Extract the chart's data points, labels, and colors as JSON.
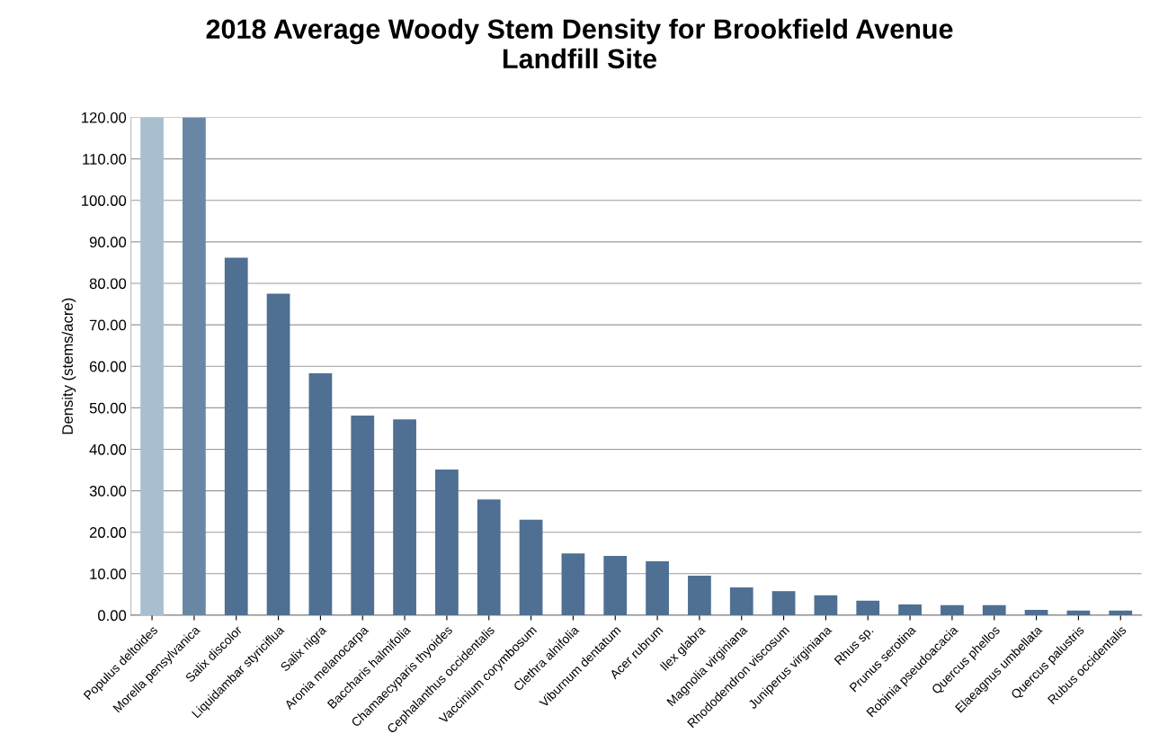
{
  "chart_data": {
    "type": "bar",
    "title": "2018 Average Woody Stem Density for Brookfield Avenue\nLandfill Site",
    "ylabel": "Density (stems/acre)",
    "categories": [
      "Populus deltoides",
      "Morella pensylvanica",
      "Salix discolor",
      "Liquidambar styriciflua",
      "Salix nigra",
      "Aronia melanocarpa",
      "Baccharis halmifolia",
      "Chamaecyparis thyoides",
      "Cephalanthus occidentalis",
      "Vaccinium corymbosum",
      "Clethra alnifolia",
      "Viburnum dentatum",
      "Acer rubrum",
      "Ilex glabra",
      "Magnolia virginiana",
      "Rhododendron viscosum",
      "Juniperus virginiana",
      "Rhus sp.",
      "Prunus serotina",
      "Robinia pseudoacacia",
      "Quercus phellos",
      "Elaeagnus umbellata",
      "Quercus palustris",
      "Rubus occidentalis"
    ],
    "values": [
      120,
      120,
      86.2,
      77.5,
      58.3,
      48.1,
      47.2,
      35.1,
      27.9,
      23.0,
      14.9,
      14.3,
      13.0,
      9.5,
      6.7,
      5.8,
      4.8,
      3.5,
      2.6,
      2.4,
      2.4,
      1.3,
      1.1,
      1.1
    ],
    "colors": [
      "#a9bfcf",
      "#6a87a6",
      "#4f6f93",
      "#4f6f93",
      "#4f6f93",
      "#4f6f93",
      "#4f6f93",
      "#4f6f93",
      "#4f6f93",
      "#4f6f93",
      "#4f6f93",
      "#4f6f93",
      "#4f6f93",
      "#4f6f93",
      "#4f6f93",
      "#4f6f93",
      "#4f6f93",
      "#4f6f93",
      "#4f6f93",
      "#4f6f93",
      "#4f6f93",
      "#4f6f93",
      "#4f6f93",
      "#4f6f93"
    ],
    "ylim": [
      0,
      120
    ],
    "yticks": [
      {
        "value": 0,
        "label": "0.00"
      },
      {
        "value": 10,
        "label": "10.00"
      },
      {
        "value": 20,
        "label": "20.00"
      },
      {
        "value": 30,
        "label": "30.00"
      },
      {
        "value": 40,
        "label": "40.00"
      },
      {
        "value": 50,
        "label": "50.00"
      },
      {
        "value": 60,
        "label": "60.00"
      },
      {
        "value": 70,
        "label": "70.00"
      },
      {
        "value": 80,
        "label": "80.00"
      },
      {
        "value": 90,
        "label": "90.00"
      },
      {
        "value": 100,
        "label": "100.00"
      },
      {
        "value": 110,
        "label": "110.00"
      },
      {
        "value": 120,
        "label": "120.00"
      }
    ],
    "grid": "y"
  }
}
